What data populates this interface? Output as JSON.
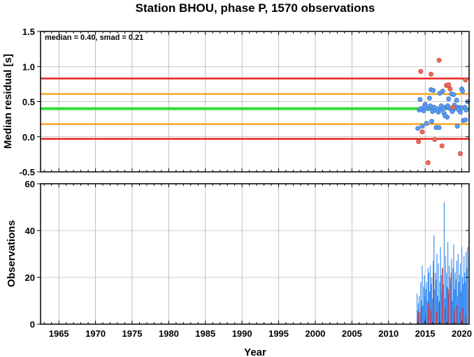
{
  "chart_data": [
    {
      "type": "scatter",
      "title": "Station BHOU, phase P, 1570 observations",
      "ylabel": "Median residual [s]",
      "xlim": [
        1962.5,
        2021.0
      ],
      "ylim": [
        -0.5,
        1.5
      ],
      "yticks": [
        "1.5",
        "1.0",
        "0.5",
        "0.0",
        "-0.5"
      ],
      "ytick_values": [
        1.5,
        1.0,
        0.5,
        0.0,
        -0.5
      ],
      "grid": true,
      "annotation": "median = 0.40, smad = 0.21",
      "reference_lines": [
        {
          "value": 0.83,
          "color": "#e8251f"
        },
        {
          "value": 0.61,
          "color": "#f5a623"
        },
        {
          "value": 0.4,
          "color": "#33dd33"
        },
        {
          "value": 0.18,
          "color": "#f5a623"
        },
        {
          "value": -0.03,
          "color": "#e8251f"
        }
      ],
      "points_normal": {
        "color": "#5b9bf5",
        "x": [
          2014.0,
          2014.2,
          2014.4,
          2014.6,
          2014.8,
          2015.0,
          2015.2,
          2015.4,
          2015.6,
          2015.8,
          2016.0,
          2016.2,
          2016.4,
          2016.6,
          2016.8,
          2017.0,
          2017.2,
          2017.4,
          2017.6,
          2017.8,
          2018.0,
          2018.2,
          2018.4,
          2018.6,
          2018.8,
          2019.0,
          2019.2,
          2019.4,
          2019.6,
          2019.8,
          2020.0,
          2020.2,
          2020.4,
          2020.6,
          2020.8,
          2014.3,
          2015.1,
          2015.9,
          2016.5,
          2017.1,
          2017.5,
          2018.1,
          2018.7,
          2019.3,
          2019.9,
          2020.5,
          2014.9,
          2016.1,
          2017.7,
          2018.9,
          2020.1,
          2015.7,
          2016.9,
          2019.5
        ],
        "y": [
          0.12,
          0.38,
          0.4,
          0.15,
          0.37,
          0.46,
          0.19,
          0.4,
          0.55,
          0.67,
          0.36,
          0.42,
          0.38,
          0.4,
          0.35,
          0.62,
          0.44,
          0.65,
          0.33,
          0.42,
          0.28,
          0.54,
          0.4,
          0.61,
          0.38,
          0.45,
          0.41,
          0.15,
          0.42,
          0.35,
          0.68,
          0.23,
          0.42,
          0.38,
          0.5,
          0.53,
          0.41,
          0.22,
          0.13,
          0.38,
          0.4,
          0.44,
          0.36,
          0.52,
          0.41,
          0.24,
          0.43,
          0.66,
          0.3,
          0.6,
          0.65,
          0.44,
          0.13,
          0.39
        ]
      },
      "points_outlier": {
        "color": "#f5665a",
        "x": [
          2014.1,
          2014.4,
          2015.4,
          2015.8,
          2016.3,
          2016.9,
          2017.3,
          2017.9,
          2018.2,
          2018.4,
          2018.8,
          2019.8,
          2020.5,
          2014.6
        ],
        "y": [
          -0.07,
          0.93,
          -0.37,
          0.89,
          -0.04,
          1.09,
          -0.13,
          0.73,
          0.74,
          0.68,
          0.42,
          -0.24,
          0.81,
          0.07
        ]
      }
    },
    {
      "type": "bar",
      "ylabel": "Observations",
      "xlabel": "Year",
      "xlim": [
        1962.5,
        2021.0
      ],
      "ylim": [
        0,
        60
      ],
      "yticks": [
        "60",
        "40",
        "20",
        "0"
      ],
      "ytick_values": [
        60,
        40,
        20,
        0
      ],
      "xticks": [
        "1965",
        "1970",
        "1975",
        "1980",
        "1985",
        "1990",
        "1995",
        "2000",
        "2005",
        "2010",
        "2015",
        "2020"
      ],
      "xtick_values": [
        1965,
        1970,
        1975,
        1980,
        1985,
        1990,
        1995,
        2000,
        2005,
        2010,
        2015,
        2020
      ],
      "grid": true,
      "bar_width": 0.075,
      "series": [
        {
          "color": "#3d8ff0",
          "x": [
            2013.9,
            2014.0,
            2014.1,
            2014.2,
            2014.3,
            2014.4,
            2014.5,
            2014.6,
            2014.7,
            2014.8,
            2014.9,
            2015.0,
            2015.1,
            2015.2,
            2015.3,
            2015.4,
            2015.5,
            2015.6,
            2015.7,
            2015.8,
            2015.9,
            2016.0,
            2016.1,
            2016.2,
            2016.3,
            2016.4,
            2016.5,
            2016.6,
            2016.7,
            2016.8,
            2016.9,
            2017.0,
            2017.1,
            2017.2,
            2017.3,
            2017.4,
            2017.5,
            2017.6,
            2017.7,
            2017.8,
            2017.9,
            2018.0,
            2018.1,
            2018.2,
            2018.3,
            2018.4,
            2018.5,
            2018.6,
            2018.7,
            2018.8,
            2018.9,
            2019.0,
            2019.1,
            2019.2,
            2019.3,
            2019.4,
            2019.5,
            2019.6,
            2019.7,
            2019.8,
            2019.9,
            2020.0,
            2020.1,
            2020.2,
            2020.3,
            2020.4,
            2020.5,
            2020.6,
            2020.7,
            2020.8
          ],
          "values": [
            13,
            6,
            9,
            12,
            5,
            18,
            10,
            25,
            8,
            16,
            21,
            12,
            15,
            18,
            10,
            24,
            22,
            14,
            25,
            17,
            20,
            11,
            27,
            38,
            15,
            22,
            19,
            30,
            12,
            26,
            9,
            18,
            33,
            21,
            14,
            24,
            17,
            52,
            11,
            29,
            22,
            16,
            35,
            13,
            25,
            20,
            18,
            28,
            10,
            24,
            34,
            15,
            22,
            19,
            27,
            12,
            30,
            18,
            21,
            26,
            14,
            33,
            20,
            17,
            29,
            22,
            18,
            31,
            24,
            33
          ]
        },
        {
          "color": "#e8251f",
          "x": [
            2014.05,
            2014.45,
            2015.05,
            2015.45,
            2015.75,
            2016.15,
            2016.55,
            2016.95,
            2017.35,
            2017.75,
            2018.15,
            2018.55,
            2018.95,
            2019.35,
            2019.75,
            2020.15,
            2020.55
          ],
          "values": [
            5,
            7,
            4,
            9,
            6,
            22,
            5,
            10,
            24,
            7,
            15,
            22,
            6,
            8,
            5,
            7,
            4
          ]
        }
      ]
    }
  ]
}
